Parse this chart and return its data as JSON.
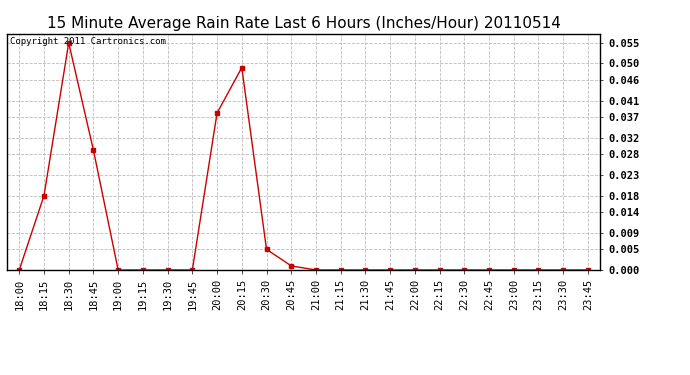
{
  "title": "15 Minute Average Rain Rate Last 6 Hours (Inches/Hour) 20110514",
  "copyright": "Copyright 2011 Cartronics.com",
  "x_labels": [
    "18:00",
    "18:15",
    "18:30",
    "18:45",
    "19:00",
    "19:15",
    "19:30",
    "19:45",
    "20:00",
    "20:15",
    "20:30",
    "20:45",
    "21:00",
    "21:15",
    "21:30",
    "21:45",
    "22:00",
    "22:15",
    "22:30",
    "22:45",
    "23:00",
    "23:15",
    "23:30",
    "23:45"
  ],
  "y_values": [
    0.0,
    0.018,
    0.055,
    0.029,
    0.0,
    0.0,
    0.0,
    0.0,
    0.038,
    0.049,
    0.005,
    0.001,
    0.0,
    0.0,
    0.0,
    0.0,
    0.0,
    0.0,
    0.0,
    0.0,
    0.0,
    0.0,
    0.0,
    0.0
  ],
  "yticks": [
    0.0,
    0.005,
    0.009,
    0.014,
    0.018,
    0.023,
    0.028,
    0.032,
    0.037,
    0.041,
    0.046,
    0.05,
    0.055
  ],
  "line_color": "#cc0000",
  "marker": "s",
  "marker_size": 2.5,
  "bg_color": "#ffffff",
  "grid_color": "#bbbbbb",
  "title_fontsize": 11,
  "copyright_fontsize": 6.5,
  "tick_fontsize": 7.5,
  "ylim": [
    0.0,
    0.0572
  ]
}
